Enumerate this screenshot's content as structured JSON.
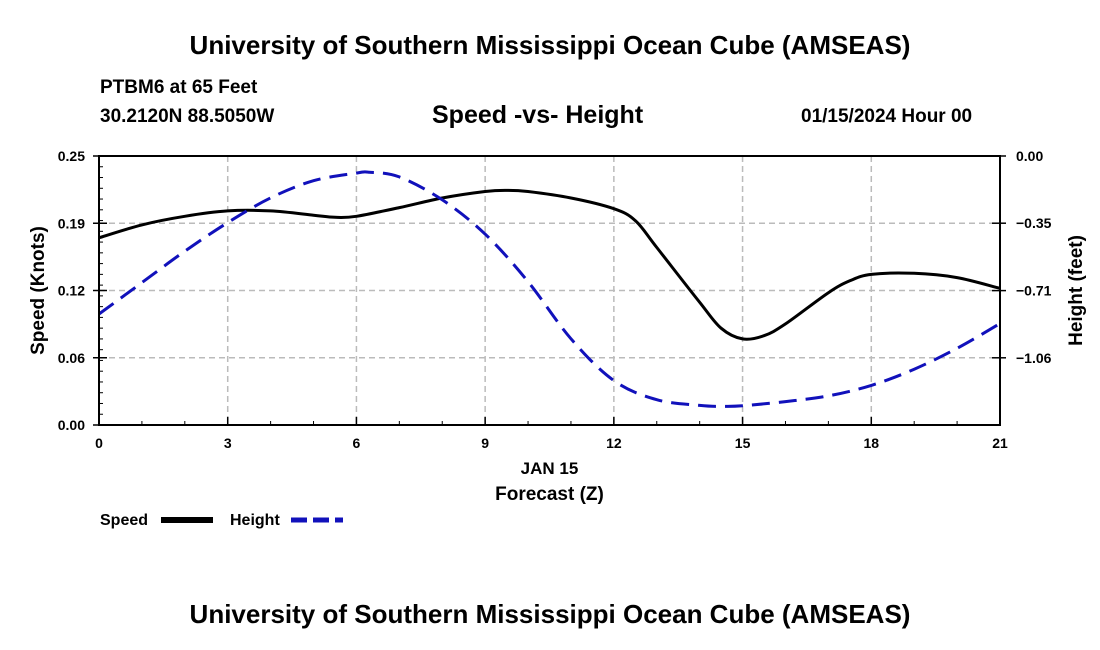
{
  "page": {
    "title_top": "University of Southern Mississippi Ocean Cube (AMSEAS)",
    "title_bottom": "University of Southern Mississippi Ocean Cube (AMSEAS)",
    "station": "PTBM6 at 65 Feet",
    "coords": "30.2120N  88.5050W",
    "subtitle": "Speed -vs- Height",
    "datetime": "01/15/2024 Hour 00"
  },
  "chart_data": {
    "type": "line",
    "title": "Speed -vs- Height",
    "xlabel": "Forecast (Z)",
    "xlabel_date": "JAN 15",
    "ylabel_left": "Speed (Knots)",
    "ylabel_right": "Height (feet)",
    "x_ticks": [
      0,
      3,
      6,
      9,
      12,
      15,
      18,
      21
    ],
    "xlim": [
      0,
      21
    ],
    "left_ticks": [
      "0.00",
      "0.06",
      "0.12",
      "0.19",
      "0.25"
    ],
    "left_tick_values": [
      0,
      0.0625,
      0.125,
      0.1875,
      0.25
    ],
    "ylim_left": [
      0,
      0.25
    ],
    "right_ticks": [
      "0.00",
      "−0.35",
      "−0.71",
      "−1.06"
    ],
    "right_tick_values": [
      0,
      -0.353,
      -0.707,
      -1.06
    ],
    "ylim_right": [
      -1.413,
      0
    ],
    "grid": true,
    "series": [
      {
        "name": "Speed",
        "axis": "left",
        "color": "#000000",
        "dash": "solid",
        "x": [
          0,
          1,
          2,
          3,
          4,
          5,
          5.5,
          6,
          7,
          8,
          9,
          9.5,
          10,
          11,
          12,
          12.5,
          13,
          14,
          14.5,
          15,
          15.5,
          16,
          17,
          17.5,
          18,
          19,
          20,
          21
        ],
        "values": [
          0.174,
          0.186,
          0.194,
          0.199,
          0.199,
          0.195,
          0.193,
          0.194,
          0.202,
          0.211,
          0.217,
          0.218,
          0.217,
          0.211,
          0.201,
          0.19,
          0.165,
          0.114,
          0.09,
          0.08,
          0.083,
          0.094,
          0.123,
          0.134,
          0.14,
          0.141,
          0.137,
          0.127
        ]
      },
      {
        "name": "Height",
        "axis": "right",
        "color": "#1111bb",
        "dash": "dashed",
        "x": [
          0,
          1,
          2,
          3,
          4,
          5,
          6,
          6.3,
          7,
          8,
          9,
          10,
          11,
          12,
          13,
          14,
          14.5,
          15,
          16,
          17,
          18,
          19,
          20,
          21
        ],
        "values": [
          -0.83,
          -0.665,
          -0.5,
          -0.35,
          -0.22,
          -0.13,
          -0.09,
          -0.085,
          -0.11,
          -0.23,
          -0.41,
          -0.66,
          -0.96,
          -1.18,
          -1.28,
          -1.31,
          -1.315,
          -1.312,
          -1.29,
          -1.26,
          -1.205,
          -1.12,
          -1.01,
          -0.88
        ]
      }
    ],
    "legend": [
      {
        "label": "Speed"
      },
      {
        "label": "Height"
      }
    ]
  }
}
